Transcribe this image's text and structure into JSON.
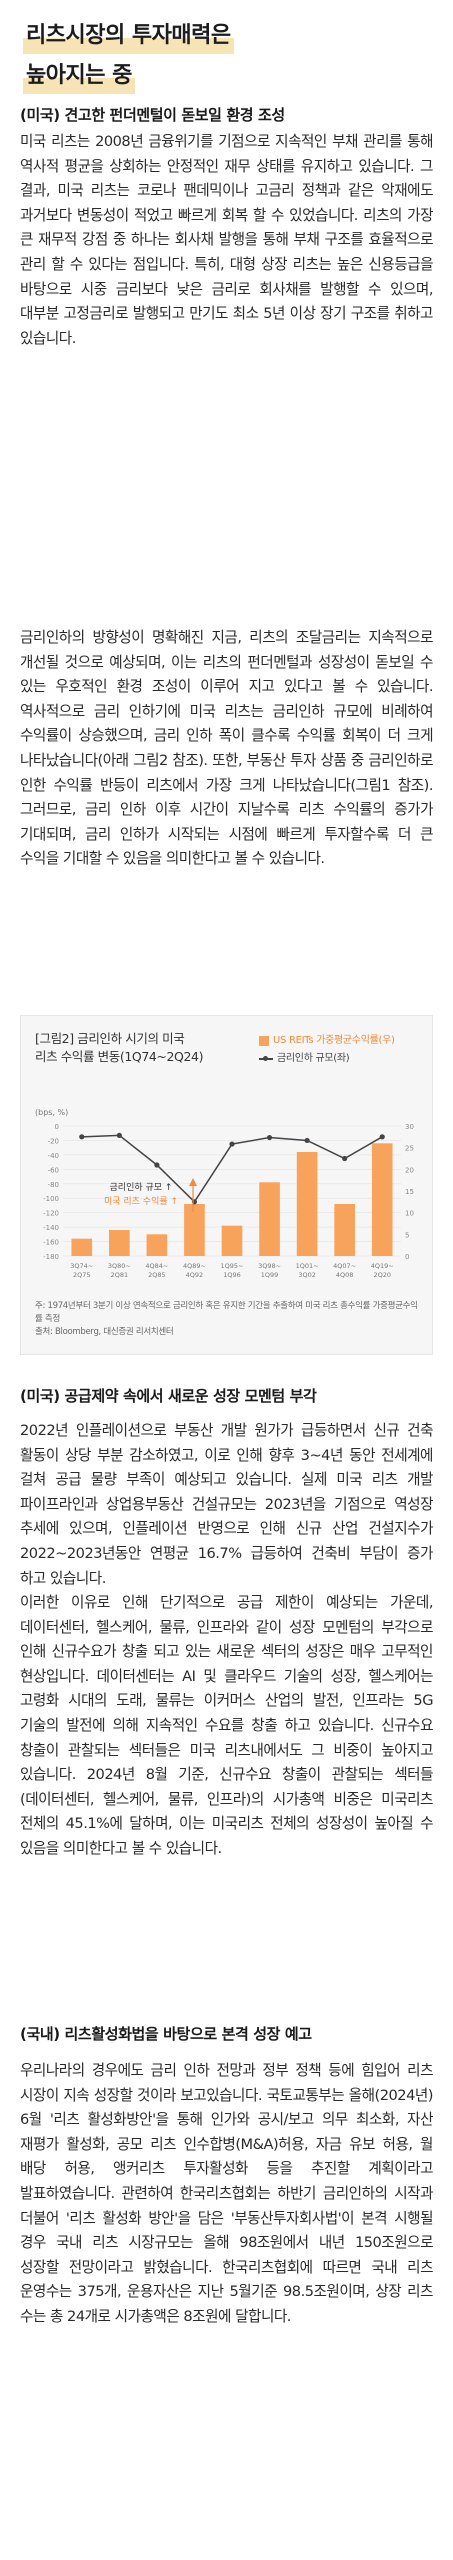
{
  "header": {
    "title_line1": "리츠시장의 투자매력은",
    "title_line2": "높아지는 중",
    "accent_color": "#f6e3b6"
  },
  "sections": [
    {
      "heading": "(미국) 견고한 펀더멘털이 돋보일 환경 조성",
      "paragraphs": [
        "미국 리츠는 2008년 금융위기를 기점으로 지속적인 부채 관리를 통해 역사적 평균을 상회하는 안정적인 재무 상태를 유지하고 있습니다. 그 결과, 미국 리츠는 코로나 팬데믹이나 고금리 정책과 같은 악재에도 과거보다 변동성이 적었고 빠르게 회복 할 수 있었습니다. 리츠의 가장 큰 재무적 강점 중 하나는 회사채 발행을 통해 부채 구조를 효율적으로 관리 할 수 있다는 점입니다. 특히, 대형 상장 리츠는 높은 신용등급을 바탕으로 시중 금리보다 낮은 금리로 회사채를 발행할 수 있으며, 대부분 고정금리로 발행되고 만기도 최소 5년 이상 장기 구조를 취하고 있습니다.",
        "금리인하의 방향성이 명확해진 지금, 리츠의 조달금리는 지속적으로 개선될 것으로 예상되며, 이는 리츠의 펀더멘털과 성장성이 돋보일 수 있는 우호적인 환경 조성이 이루어 지고 있다고 볼 수 있습니다. 역사적으로 금리 인하기에 미국 리츠는 금리인하 규모에 비례하여 수익률이 상승했으며, 금리 인하 폭이 클수록 수익률 회복이 더 크게 나타났습니다(아래 그림2 참조). 또한, 부동산 투자 상품 중 금리인하로 인한 수익률 반등이 리츠에서 가장 크게 나타났습니다(그림1 참조). 그러므로, 금리 인하 이후 시간이 지날수록 리츠 수익률의 증가가 기대되며, 금리 인하가 시작되는 시점에 빠르게 투자할수록 더 큰 수익을 기대할 수 있음을 의미한다고 볼 수 있습니다."
      ]
    },
    {
      "heading": "(미국) 공급제약 속에서 새로운 성장 모멘텀 부각",
      "paragraphs": [
        "2022년 인플레이션으로 부동산 개발 원가가 급등하면서 신규 건축 활동이 상당 부분 감소하였고, 이로 인해 향후 3~4년 동안 전세계에 걸쳐 공급 물량 부족이 예상되고 있습니다. 실제 미국 리츠 개발 파이프라인과 상업용부동산 건설규모는 2023년을 기점으로 역성장 추세에 있으며, 인플레이션 반영으로 인해 신규 산업 건설지수가 2022~2023년동안 연평균 16.7% 급등하여 건축비 부담이 증가 하고 있습니다.",
        "이러한 이유로 인해 단기적으로 공급 제한이 예상되는 가운데, 데이터센터, 헬스케어, 물류, 인프라와 같이 성장 모멘텀의 부각으로 인해 신규수요가 창출 되고 있는 새로운 섹터의 성장은 매우 고무적인 현상입니다. 데이터센터는 AI 및 클라우드 기술의 성장, 헬스케어는 고령화 시대의 도래, 물류는 이커머스 산업의 발전, 인프라는 5G 기술의 발전에 의해 지속적인 수요를 창출 하고 있습니다. 신규수요 창출이 관찰되는 섹터들은 미국 리츠내에서도 그 비중이 높아지고 있습니다. 2024년 8월 기준, 신규수요 창출이 관찰되는 섹터들(데이터센터, 헬스케어, 물류, 인프라)의 시가총액 비중은 미국리츠 전체의 45.1%에 달하며, 이는 미국리츠 전체의 성장성이 높아질 수 있음을 의미한다고 볼 수 있습니다."
      ]
    },
    {
      "heading": "(국내) 리츠활성화법을 바탕으로 본격 성장 예고",
      "paragraphs": [
        "우리나라의 경우에도 금리 인하 전망과 정부 정책 등에 힘입어 리츠 시장이 지속 성장할 것이라 보고있습니다. 국토교통부는 올해(2024년) 6월 '리츠 활성화방안'을 통해 인가와 공시/보고 의무 최소화, 자산 재평가 활성화, 공모 리츠 인수합병(M&A)허용, 자금 유보 허용, 월 배당 허용, 앵커리츠 투자활성화 등을 추진할 계획이라고 발표하였습니다. 관련하여 한국리츠협회는 하반기 금리인하의 시작과 더불어 '리츠 활성화 방안'을 담은 '부동산투자회사법'이 본격 시행될 경우 국내 리츠 시장규모는 올해 98조원에서 내년 150조원으로 성장할 전망이라고 밝혔습니다. 한국리츠협회에 따르면 국내 리츠 운영수는 375개, 운용자산은 지난 5월기준 98.5조원이며, 상장 리츠 수는 총 24개로 시가총액은 8조원에 달합니다."
      ]
    }
  ],
  "figure": {
    "title_line1": "[그림2] 금리인하 시기의 미국",
    "title_line2": "리츠 수익률 변동(1Q74~2Q24)",
    "legend_bar": "US REITs 가중평균수익률(우)",
    "legend_line": "금리인하 규모(좌)",
    "annotation_line1": "금리인하 규모 ↑",
    "annotation_line2": "미국 리츠 수익률 ↑",
    "note": "주: 1974년부터 3분기 이상 연속적으로 금리인하 혹은 유지한 기간을 추출하여 미국 리츠 총수익률 가중평균수익률 측정",
    "source": "출처: Bloomberg, 대신증권 리서치센터",
    "bar_color": "#f7a35c",
    "line_color": "#444444"
  },
  "chart_data": {
    "type": "bar",
    "categories": [
      "3Q74~2Q75",
      "3Q80~2Q81",
      "4Q84~2Q85",
      "4Q89~4Q92",
      "1Q95~1Q96",
      "3Q98~1Q99",
      "1Q01~3Q02",
      "4Q07~4Q08",
      "4Q19~2Q20"
    ],
    "series": [
      {
        "name": "US REITs 가중평균수익률(우)",
        "axis": "right",
        "values": [
          4,
          6,
          5,
          12,
          7,
          17,
          24,
          12,
          26
        ]
      },
      {
        "name": "금리인하 규모(좌)",
        "axis": "left",
        "values": [
          -15,
          -13,
          -54,
          -105,
          -25,
          -16,
          -20,
          -45,
          -15
        ]
      }
    ],
    "left_axis_label": "(bps, %)",
    "left_ylim": [
      -180,
      0
    ],
    "left_ticks": [
      -180,
      -160,
      -140,
      -120,
      -100,
      -80,
      -60,
      -40,
      -20,
      0
    ],
    "right_ylim": [
      0,
      30
    ],
    "right_ticks": [
      0,
      5,
      10,
      15,
      20,
      25,
      30
    ]
  }
}
